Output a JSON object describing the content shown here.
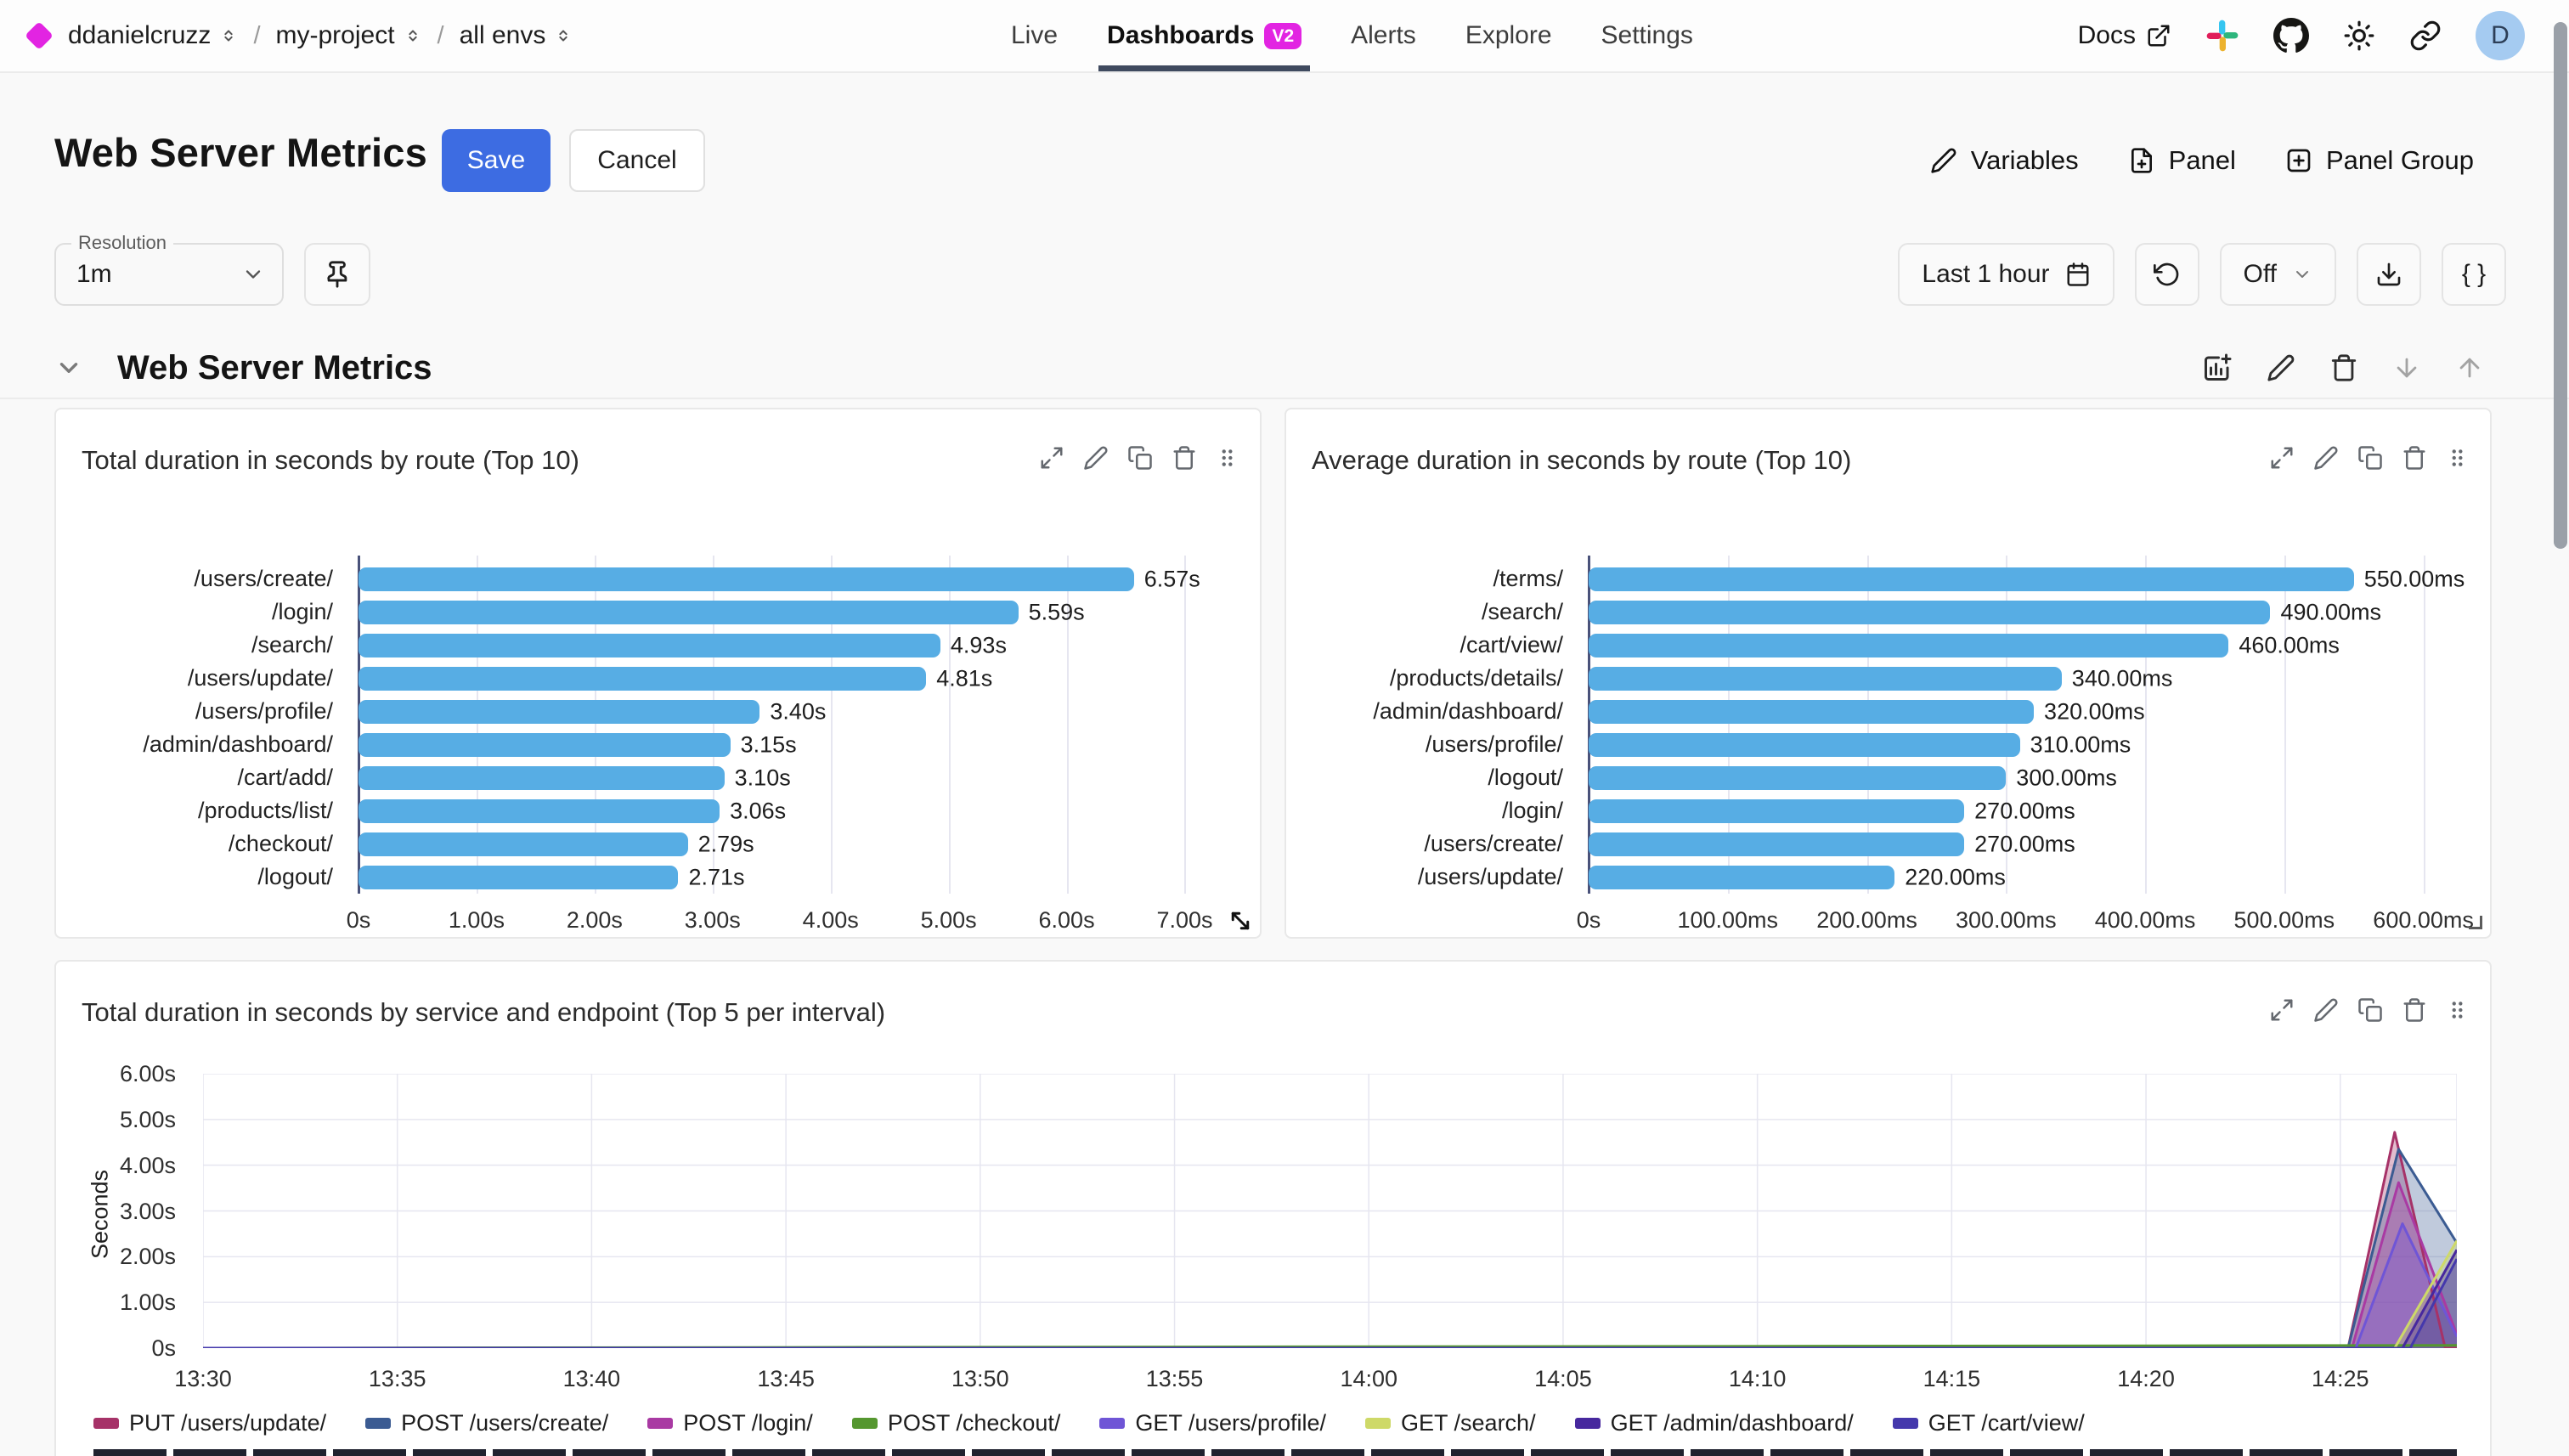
{
  "topnav": {
    "breadcrumb": [
      {
        "label": "ddanielcruzz"
      },
      {
        "label": "my-project"
      },
      {
        "label": "all envs"
      }
    ],
    "tabs": [
      {
        "label": "Live"
      },
      {
        "label": "Dashboards",
        "badge": "V2",
        "active": true
      },
      {
        "label": "Alerts"
      },
      {
        "label": "Explore"
      },
      {
        "label": "Settings"
      }
    ],
    "docs_label": "Docs",
    "avatar_initial": "D"
  },
  "header": {
    "title": "Web Server Metrics",
    "save_label": "Save",
    "cancel_label": "Cancel",
    "actions": [
      {
        "label": "Variables"
      },
      {
        "label": "Panel"
      },
      {
        "label": "Panel Group"
      }
    ]
  },
  "toolbar": {
    "resolution_label": "Resolution",
    "resolution_value": "1m",
    "time_range": "Last 1 hour",
    "refresh_off": "Off",
    "code_button": "{ }"
  },
  "section": {
    "title": "Web Server Metrics"
  },
  "colors": {
    "brand_magenta": "#e224e2",
    "save_blue": "#3d6ce2",
    "bar_blue": "#57ade4",
    "tab_underline": "#3f4a5f"
  },
  "chart_data": [
    {
      "type": "bar",
      "orientation": "horizontal",
      "title": "Total duration in seconds by route (Top 10)",
      "categories": [
        "/users/create/",
        "/login/",
        "/search/",
        "/users/update/",
        "/users/profile/",
        "/admin/dashboard/",
        "/cart/add/",
        "/products/list/",
        "/checkout/",
        "/logout/"
      ],
      "values": [
        6.57,
        5.59,
        4.93,
        4.81,
        3.4,
        3.15,
        3.1,
        3.06,
        2.79,
        2.71
      ],
      "value_labels": [
        "6.57s",
        "5.59s",
        "4.93s",
        "4.81s",
        "3.40s",
        "3.15s",
        "3.10s",
        "3.06s",
        "2.79s",
        "2.71s"
      ],
      "x_ticks": [
        {
          "label": "0s",
          "v": 0
        },
        {
          "label": "1.00s",
          "v": 1
        },
        {
          "label": "2.00s",
          "v": 2
        },
        {
          "label": "3.00s",
          "v": 3
        },
        {
          "label": "4.00s",
          "v": 4
        },
        {
          "label": "5.00s",
          "v": 5
        },
        {
          "label": "6.00s",
          "v": 6
        },
        {
          "label": "7.00s",
          "v": 7
        }
      ],
      "xlim": [
        0,
        7.45
      ],
      "bar_color": "#57ade4"
    },
    {
      "type": "bar",
      "orientation": "horizontal",
      "title": "Average duration in seconds by route (Top 10)",
      "categories": [
        "/terms/",
        "/search/",
        "/cart/view/",
        "/products/details/",
        "/admin/dashboard/",
        "/users/profile/",
        "/logout/",
        "/login/",
        "/users/create/",
        "/users/update/"
      ],
      "values": [
        550,
        490,
        460,
        340,
        320,
        310,
        300,
        270,
        270,
        220
      ],
      "value_labels": [
        "550.00ms",
        "490.00ms",
        "460.00ms",
        "340.00ms",
        "320.00ms",
        "310.00ms",
        "300.00ms",
        "270.00ms",
        "270.00ms",
        "220.00ms"
      ],
      "x_ticks": [
        {
          "label": "0s",
          "v": 0
        },
        {
          "label": "100.00ms",
          "v": 100
        },
        {
          "label": "200.00ms",
          "v": 200
        },
        {
          "label": "300.00ms",
          "v": 300
        },
        {
          "label": "400.00ms",
          "v": 400
        },
        {
          "label": "500.00ms",
          "v": 500
        },
        {
          "label": "600.00ms",
          "v": 600
        }
      ],
      "xlim": [
        0,
        632
      ],
      "bar_color": "#57ade4"
    },
    {
      "type": "area",
      "title": "Total duration in seconds by service and endpoint (Top 5 per interval)",
      "ylabel": "Seconds",
      "y_ticks": [
        {
          "label": "0s",
          "v": 0
        },
        {
          "label": "1.00s",
          "v": 1
        },
        {
          "label": "2.00s",
          "v": 2
        },
        {
          "label": "3.00s",
          "v": 3
        },
        {
          "label": "4.00s",
          "v": 4
        },
        {
          "label": "5.00s",
          "v": 5
        },
        {
          "label": "6.00s",
          "v": 6
        }
      ],
      "y_max": 6,
      "x_ticks": [
        {
          "label": "13:30",
          "m": 0
        },
        {
          "label": "13:35",
          "m": 5
        },
        {
          "label": "13:40",
          "m": 10
        },
        {
          "label": "13:45",
          "m": 15
        },
        {
          "label": "13:50",
          "m": 20
        },
        {
          "label": "13:55",
          "m": 25
        },
        {
          "label": "14:00",
          "m": 30
        },
        {
          "label": "14:05",
          "m": 35
        },
        {
          "label": "14:10",
          "m": 40
        },
        {
          "label": "14:15",
          "m": 45
        },
        {
          "label": "14:20",
          "m": 50
        },
        {
          "label": "14:25",
          "m": 55
        }
      ],
      "x_domain": [
        0,
        58
      ],
      "series": [
        {
          "name": "PUT /users/update/",
          "color": "#a63268",
          "points": [
            [
              0,
              0
            ],
            [
              55.2,
              0
            ],
            [
              56.4,
              4.72
            ],
            [
              57.7,
              0
            ],
            [
              58,
              0
            ]
          ]
        },
        {
          "name": "POST /users/create/",
          "color": "#3b5b92",
          "points": [
            [
              0,
              0
            ],
            [
              55.2,
              0
            ],
            [
              56.5,
              4.35
            ],
            [
              58,
              2.3
            ]
          ]
        },
        {
          "name": "POST /login/",
          "color": "#a93aa3",
          "points": [
            [
              0,
              0
            ],
            [
              55.3,
              0
            ],
            [
              56.5,
              3.62
            ],
            [
              58,
              0.3
            ]
          ]
        },
        {
          "name": "POST /checkout/",
          "color": "#55972f",
          "points": [
            [
              0,
              0
            ],
            [
              58,
              0.06
            ]
          ]
        },
        {
          "name": "GET /users/profile/",
          "color": "#6f55d6",
          "points": [
            [
              0,
              0
            ],
            [
              55.4,
              0
            ],
            [
              56.6,
              2.72
            ],
            [
              58,
              0.25
            ]
          ]
        },
        {
          "name": "GET /search/",
          "color": "#ced968",
          "points": [
            [
              0,
              0
            ],
            [
              56.4,
              0
            ],
            [
              58,
              2.35
            ]
          ]
        },
        {
          "name": "GET /admin/dashboard/",
          "color": "#47289e",
          "points": [
            [
              0,
              0
            ],
            [
              56.6,
              0
            ],
            [
              58,
              2.15
            ]
          ]
        },
        {
          "name": "GET /cart/view/",
          "color": "#4438ac",
          "points": [
            [
              0,
              0
            ],
            [
              56.8,
              0
            ],
            [
              58,
              1.95
            ]
          ]
        }
      ]
    }
  ]
}
